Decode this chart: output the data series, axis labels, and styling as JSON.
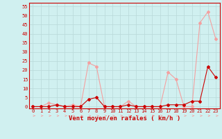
{
  "x": [
    0,
    1,
    2,
    3,
    4,
    5,
    6,
    7,
    8,
    9,
    10,
    11,
    12,
    13,
    14,
    15,
    16,
    17,
    18,
    19,
    20,
    21,
    22,
    23
  ],
  "y_rafales": [
    0,
    0,
    2,
    1,
    0,
    1,
    0,
    24,
    22,
    0,
    0,
    0,
    3,
    0,
    0,
    0,
    0,
    19,
    15,
    0,
    0,
    46,
    52,
    37
  ],
  "y_moyen": [
    0,
    0,
    0,
    1,
    0,
    0,
    0,
    4,
    5,
    0,
    0,
    0,
    1,
    0,
    0,
    0,
    0,
    1,
    1,
    1,
    3,
    3,
    22,
    16
  ],
  "color_rafales": "#f4a0a0",
  "color_moyen": "#cc0000",
  "bg_color": "#d0f0f0",
  "grid_color": "#b8d8d8",
  "xlabel": "Vent moyen/en rafales ( km/h )",
  "ylabel_ticks": [
    0,
    5,
    10,
    15,
    20,
    25,
    30,
    35,
    40,
    45,
    50,
    55
  ],
  "xlim": [
    -0.5,
    23.5
  ],
  "ylim": [
    -1,
    57
  ],
  "xlabel_color": "#cc0000",
  "tick_color": "#cc0000",
  "marker": "D",
  "marker_size": 2,
  "line_width": 0.8,
  "spine_color": "#cc0000",
  "font_size_tick": 5,
  "font_size_xlabel": 6.5
}
